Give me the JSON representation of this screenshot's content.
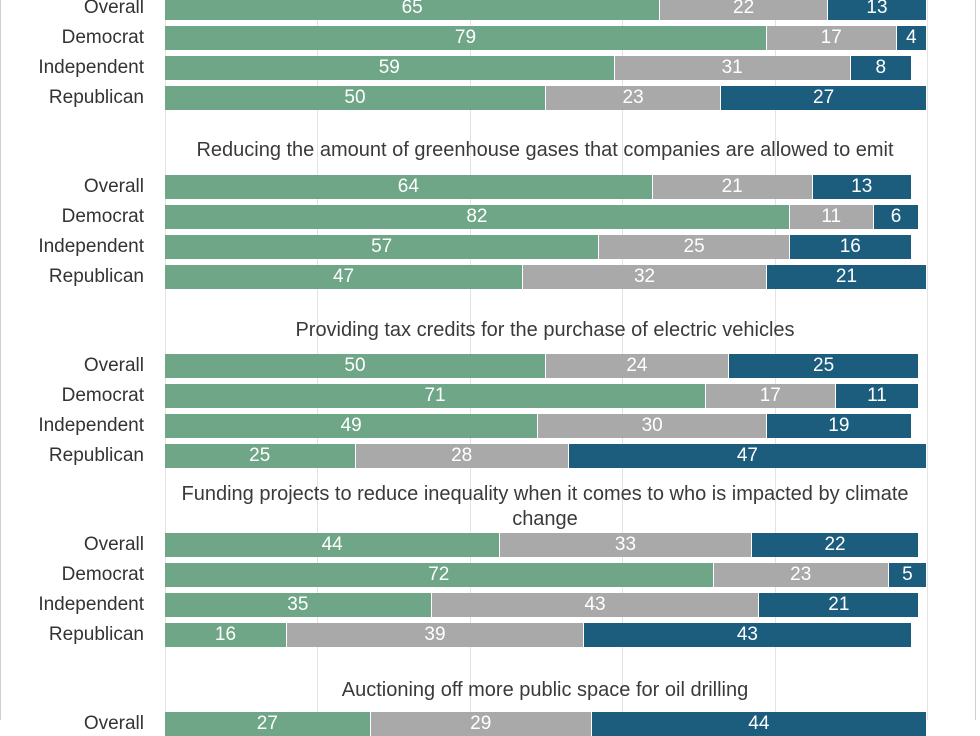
{
  "chart_data": {
    "type": "bar",
    "orientation": "horizontal",
    "stacked": true,
    "xlim": [
      0,
      100
    ],
    "grid": true,
    "colors": [
      "#6ea687",
      "#a9a9a9",
      "#1c5d7d"
    ],
    "groups": [
      {
        "title": "",
        "rows": [
          {
            "label": "Overall",
            "values": [
              65,
              22,
              13
            ]
          },
          {
            "label": "Democrat",
            "values": [
              79,
              17,
              4
            ]
          },
          {
            "label": "Independent",
            "values": [
              59,
              31,
              8
            ]
          },
          {
            "label": "Republican",
            "values": [
              50,
              23,
              27
            ]
          }
        ]
      },
      {
        "title": "Reducing the amount of greenhouse gases that companies are allowed to emit",
        "rows": [
          {
            "label": "Overall",
            "values": [
              64,
              21,
              13
            ]
          },
          {
            "label": "Democrat",
            "values": [
              82,
              11,
              6
            ]
          },
          {
            "label": "Independent",
            "values": [
              57,
              25,
              16
            ]
          },
          {
            "label": "Republican",
            "values": [
              47,
              32,
              21
            ]
          }
        ]
      },
      {
        "title": "Providing tax credits for the purchase of electric vehicles",
        "rows": [
          {
            "label": "Overall",
            "values": [
              50,
              24,
              25
            ]
          },
          {
            "label": "Democrat",
            "values": [
              71,
              17,
              11
            ]
          },
          {
            "label": "Independent",
            "values": [
              49,
              30,
              19
            ]
          },
          {
            "label": "Republican",
            "values": [
              25,
              28,
              47
            ]
          }
        ]
      },
      {
        "title": "Funding projects to reduce inequality when it comes to who is impacted by climate change",
        "rows": [
          {
            "label": "Overall",
            "values": [
              44,
              33,
              22
            ]
          },
          {
            "label": "Democrat",
            "values": [
              72,
              23,
              5
            ]
          },
          {
            "label": "Independent",
            "values": [
              35,
              43,
              21
            ]
          },
          {
            "label": "Republican",
            "values": [
              16,
              39,
              43
            ]
          }
        ]
      },
      {
        "title": "Auctioning off more public space for oil drilling",
        "rows": [
          {
            "label": "Overall",
            "values": [
              27,
              29,
              44
            ]
          }
        ]
      }
    ]
  }
}
